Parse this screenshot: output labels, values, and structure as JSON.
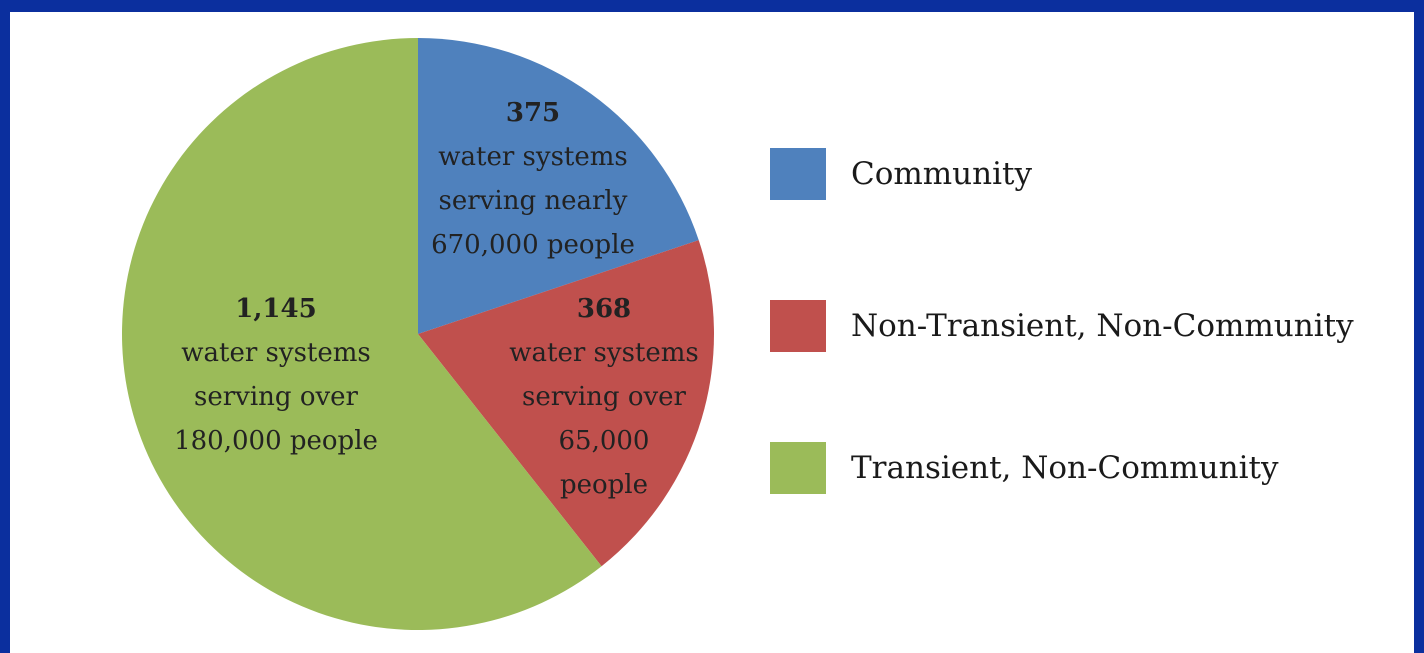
{
  "chart_data": {
    "type": "pie",
    "title": "",
    "series": [
      {
        "name": "Community",
        "value": 375,
        "color": "#4f81bd",
        "label_lines": [
          "375",
          "water systems",
          "serving nearly",
          "670,000 people"
        ]
      },
      {
        "name": "Non-Transient, Non-Community",
        "value": 368,
        "color": "#c0504d",
        "label_lines": [
          "368",
          "water systems",
          "serving over",
          "65,000",
          "people"
        ]
      },
      {
        "name": "Transient, Non-Community",
        "value": 1145,
        "color": "#9bbb59",
        "label_lines": [
          "1,145",
          "water systems",
          "serving over",
          "180,000 people"
        ]
      }
    ],
    "start_angle_deg": 0,
    "direction": "clockwise",
    "legend_position": "right"
  }
}
